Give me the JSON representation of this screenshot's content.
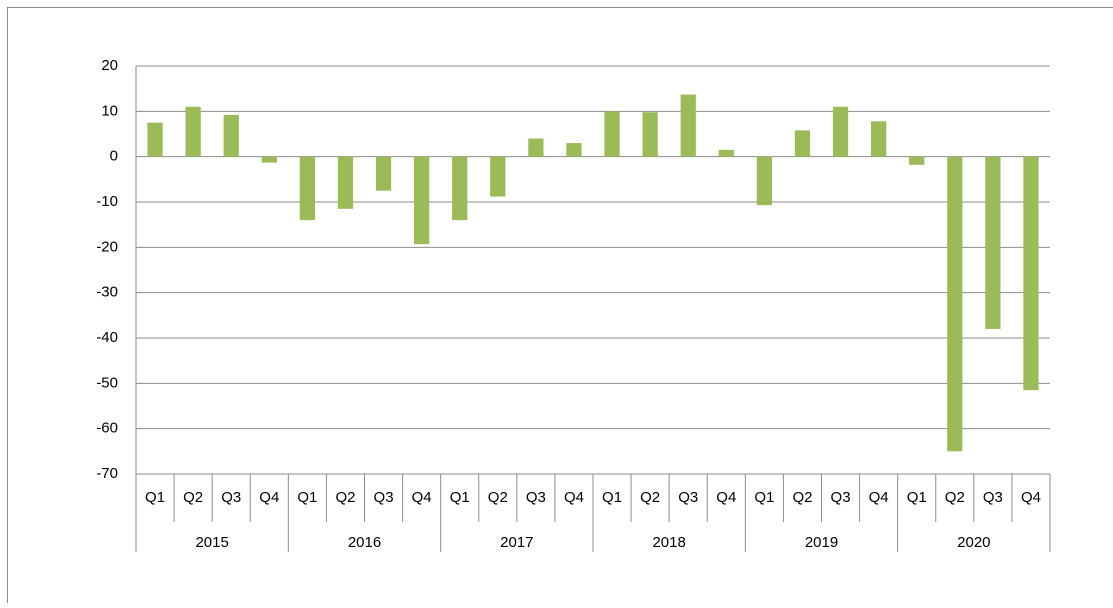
{
  "chart_data": {
    "type": "bar",
    "categories": [
      "Q1",
      "Q2",
      "Q3",
      "Q4",
      "Q1",
      "Q2",
      "Q3",
      "Q4",
      "Q1",
      "Q2",
      "Q3",
      "Q4",
      "Q1",
      "Q2",
      "Q3",
      "Q4",
      "Q1",
      "Q2",
      "Q3",
      "Q4",
      "Q1",
      "Q2",
      "Q3",
      "Q4"
    ],
    "groups": [
      "2015",
      "2016",
      "2017",
      "2018",
      "2019",
      "2020"
    ],
    "values": [
      7.5,
      11,
      9.2,
      -1.3,
      -14,
      -11.5,
      -7.5,
      -19.3,
      -14,
      -8.8,
      4,
      3,
      10,
      9.8,
      13.7,
      1.5,
      -10.7,
      5.8,
      11,
      7.8,
      -1.8,
      -65,
      -38,
      -51.5
    ],
    "color": "#9bbb59",
    "ylim": [
      -70,
      20
    ],
    "yticks": [
      -70,
      -60,
      -50,
      -40,
      -30,
      -20,
      -10,
      0,
      10,
      20
    ],
    "grid": true
  }
}
